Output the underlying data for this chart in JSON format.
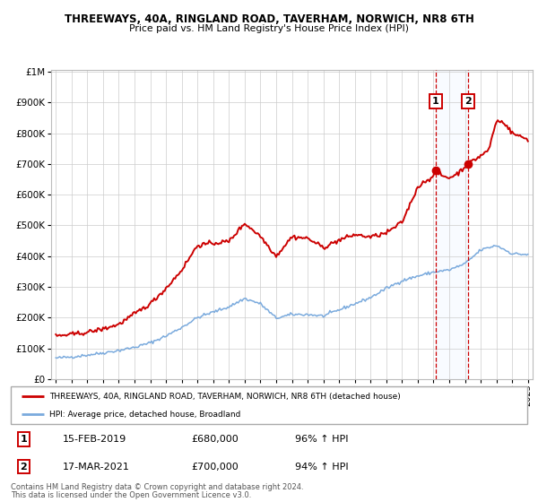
{
  "title": "THREEWAYS, 40A, RINGLAND ROAD, TAVERHAM, NORWICH, NR8 6TH",
  "subtitle": "Price paid vs. HM Land Registry's House Price Index (HPI)",
  "legend_line1": "THREEWAYS, 40A, RINGLAND ROAD, TAVERHAM, NORWICH, NR8 6TH (detached house)",
  "legend_line2": "HPI: Average price, detached house, Broadland",
  "sale1_date": "15-FEB-2019",
  "sale1_price": "£680,000",
  "sale1_hpi": "96% ↑ HPI",
  "sale2_date": "17-MAR-2021",
  "sale2_price": "£700,000",
  "sale2_hpi": "94% ↑ HPI",
  "footer1": "Contains HM Land Registry data © Crown copyright and database right 2024.",
  "footer2": "This data is licensed under the Open Government Licence v3.0.",
  "red_color": "#cc0000",
  "blue_color": "#7aaadd",
  "shade_color": "#ddeeff",
  "sale1_year": 2019.12,
  "sale2_year": 2021.21,
  "sale1_value": 680000,
  "sale2_value": 700000,
  "ylim_max": 1000000,
  "xlim_min": 1995,
  "xlim_max": 2025,
  "hpi_anchors_x": [
    1995,
    1996,
    1997,
    1998,
    1999,
    2000,
    2001,
    2002,
    2003,
    2004,
    2005,
    2006,
    2007,
    2008,
    2009,
    2010,
    2011,
    2012,
    2013,
    2014,
    2015,
    2016,
    2017,
    2018,
    2019,
    2020,
    2021,
    2022,
    2023,
    2024,
    2025
  ],
  "hpi_anchors_y": [
    68000,
    72000,
    78000,
    85000,
    93000,
    103000,
    118000,
    140000,
    168000,
    200000,
    218000,
    235000,
    262000,
    245000,
    198000,
    210000,
    210000,
    205000,
    225000,
    245000,
    265000,
    295000,
    320000,
    335000,
    348000,
    355000,
    375000,
    420000,
    435000,
    408000,
    405000
  ],
  "red_anchors_x": [
    1995,
    1996,
    1997,
    1998,
    1999,
    2000,
    2001,
    2002,
    2003,
    2004,
    2005,
    2006,
    2007,
    2008,
    2009,
    2010,
    2011,
    2012,
    2013,
    2014,
    2015,
    2016,
    2017,
    2018,
    2018.5,
    2019.0,
    2019.12,
    2019.5,
    2020.0,
    2020.5,
    2021.21,
    2021.8,
    2022.5,
    2023.0,
    2023.5,
    2024.0,
    2024.5,
    2025
  ],
  "red_anchors_y": [
    140000,
    145000,
    152000,
    163000,
    178000,
    212000,
    245000,
    295000,
    355000,
    435000,
    442000,
    448000,
    507000,
    465000,
    400000,
    463000,
    458000,
    428000,
    452000,
    470000,
    462000,
    475000,
    510000,
    625000,
    645000,
    660000,
    680000,
    662000,
    655000,
    668000,
    700000,
    720000,
    745000,
    840000,
    835000,
    800000,
    790000,
    780000
  ]
}
